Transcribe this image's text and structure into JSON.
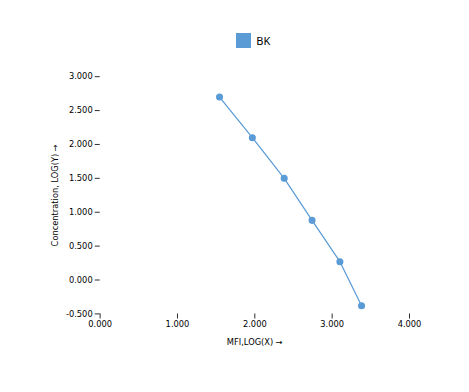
{
  "chart_data": {
    "type": "line",
    "x": [
      1.544,
      1.968,
      2.38,
      2.74,
      3.1,
      3.38
    ],
    "series": [
      {
        "name": "BK",
        "color": "#5b9bd5",
        "marker": "circle",
        "values": [
          2.7,
          2.1,
          1.5,
          0.88,
          0.27,
          -0.38
        ]
      }
    ],
    "xlabel": "MFI,LOG(X)",
    "ylabel": "Concentration, LOG(Y)",
    "xlim": [
      0.0,
      4.0
    ],
    "ylim": [
      -0.5,
      3.0
    ],
    "xticks": [
      {
        "value": 0.0,
        "label": "0.000"
      },
      {
        "value": 1.0,
        "label": "1.000"
      },
      {
        "value": 2.0,
        "label": "2.000"
      },
      {
        "value": 3.0,
        "label": "3.000"
      },
      {
        "value": 4.0,
        "label": "4.000"
      }
    ],
    "yticks": [
      {
        "value": -0.5,
        "label": "-0.500"
      },
      {
        "value": 0.0,
        "label": "0.000"
      },
      {
        "value": 0.5,
        "label": "0.500"
      },
      {
        "value": 1.0,
        "label": "1.000"
      },
      {
        "value": 1.5,
        "label": "1.500"
      },
      {
        "value": 2.0,
        "label": "2.000"
      },
      {
        "value": 2.5,
        "label": "2.500"
      },
      {
        "value": 3.0,
        "label": "3.000"
      }
    ],
    "grid": false,
    "legend": "top"
  }
}
